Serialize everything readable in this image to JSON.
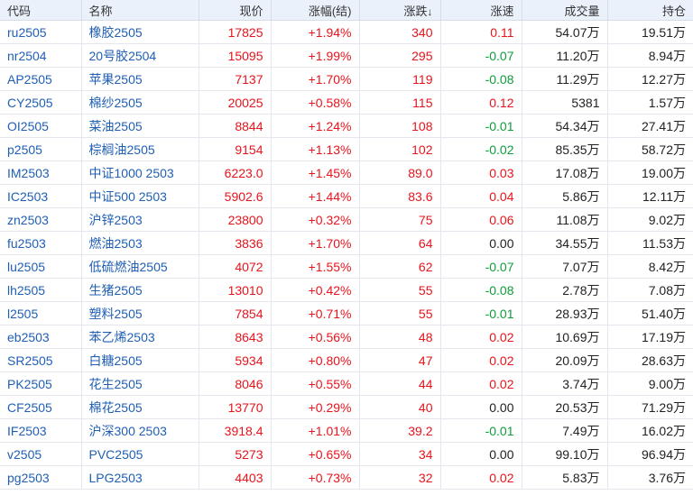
{
  "columns": {
    "code": "代码",
    "name": "名称",
    "price": "现价",
    "change_pct": "涨幅(结)",
    "change": "涨跌",
    "change_sort_icon": "↓",
    "speed": "涨速",
    "volume": "成交量",
    "open_interest": "持仓"
  },
  "rows": [
    {
      "code": "ru2505",
      "name": "橡胶2505",
      "price": "17825",
      "change_pct": "+1.94%",
      "change": "340",
      "speed": "0.11",
      "speed_dir": "up",
      "volume": "54.07万",
      "open_interest": "19.51万"
    },
    {
      "code": "nr2504",
      "name": "20号胶2504",
      "price": "15095",
      "change_pct": "+1.99%",
      "change": "295",
      "speed": "-0.07",
      "speed_dir": "down",
      "volume": "11.20万",
      "open_interest": "8.94万"
    },
    {
      "code": "AP2505",
      "name": "苹果2505",
      "price": "7137",
      "change_pct": "+1.70%",
      "change": "119",
      "speed": "-0.08",
      "speed_dir": "down",
      "volume": "11.29万",
      "open_interest": "12.27万"
    },
    {
      "code": "CY2505",
      "name": "棉纱2505",
      "price": "20025",
      "change_pct": "+0.58%",
      "change": "115",
      "speed": "0.12",
      "speed_dir": "up",
      "volume": "5381",
      "open_interest": "1.57万"
    },
    {
      "code": "OI2505",
      "name": "菜油2505",
      "price": "8844",
      "change_pct": "+1.24%",
      "change": "108",
      "speed": "-0.01",
      "speed_dir": "down",
      "volume": "54.34万",
      "open_interest": "27.41万"
    },
    {
      "code": "p2505",
      "name": "棕榈油2505",
      "price": "9154",
      "change_pct": "+1.13%",
      "change": "102",
      "speed": "-0.02",
      "speed_dir": "down",
      "volume": "85.35万",
      "open_interest": "58.72万"
    },
    {
      "code": "IM2503",
      "name": "中证1000 2503",
      "price": "6223.0",
      "change_pct": "+1.45%",
      "change": "89.0",
      "speed": "0.03",
      "speed_dir": "up",
      "volume": "17.08万",
      "open_interest": "19.00万"
    },
    {
      "code": "IC2503",
      "name": "中证500 2503",
      "price": "5902.6",
      "change_pct": "+1.44%",
      "change": "83.6",
      "speed": "0.04",
      "speed_dir": "up",
      "volume": "5.86万",
      "open_interest": "12.11万"
    },
    {
      "code": "zn2503",
      "name": "沪锌2503",
      "price": "23800",
      "change_pct": "+0.32%",
      "change": "75",
      "speed": "0.06",
      "speed_dir": "up",
      "volume": "11.08万",
      "open_interest": "9.02万"
    },
    {
      "code": "fu2503",
      "name": "燃油2503",
      "price": "3836",
      "change_pct": "+1.70%",
      "change": "64",
      "speed": "0.00",
      "speed_dir": "flat",
      "volume": "34.55万",
      "open_interest": "11.53万"
    },
    {
      "code": "lu2505",
      "name": "低硫燃油2505",
      "price": "4072",
      "change_pct": "+1.55%",
      "change": "62",
      "speed": "-0.07",
      "speed_dir": "down",
      "volume": "7.07万",
      "open_interest": "8.42万"
    },
    {
      "code": "lh2505",
      "name": "生猪2505",
      "price": "13010",
      "change_pct": "+0.42%",
      "change": "55",
      "speed": "-0.08",
      "speed_dir": "down",
      "volume": "2.78万",
      "open_interest": "7.08万"
    },
    {
      "code": "l2505",
      "name": "塑料2505",
      "price": "7854",
      "change_pct": "+0.71%",
      "change": "55",
      "speed": "-0.01",
      "speed_dir": "down",
      "volume": "28.93万",
      "open_interest": "51.40万"
    },
    {
      "code": "eb2503",
      "name": "苯乙烯2503",
      "price": "8643",
      "change_pct": "+0.56%",
      "change": "48",
      "speed": "0.02",
      "speed_dir": "up",
      "volume": "10.69万",
      "open_interest": "17.19万"
    },
    {
      "code": "SR2505",
      "name": "白糖2505",
      "price": "5934",
      "change_pct": "+0.80%",
      "change": "47",
      "speed": "0.02",
      "speed_dir": "up",
      "volume": "20.09万",
      "open_interest": "28.63万"
    },
    {
      "code": "PK2505",
      "name": "花生2505",
      "price": "8046",
      "change_pct": "+0.55%",
      "change": "44",
      "speed": "0.02",
      "speed_dir": "up",
      "volume": "3.74万",
      "open_interest": "9.00万"
    },
    {
      "code": "CF2505",
      "name": "棉花2505",
      "price": "13770",
      "change_pct": "+0.29%",
      "change": "40",
      "speed": "0.00",
      "speed_dir": "flat",
      "volume": "20.53万",
      "open_interest": "71.29万"
    },
    {
      "code": "IF2503",
      "name": "沪深300 2503",
      "price": "3918.4",
      "change_pct": "+1.01%",
      "change": "39.2",
      "speed": "-0.01",
      "speed_dir": "down",
      "volume": "7.49万",
      "open_interest": "16.02万"
    },
    {
      "code": "v2505",
      "name": "PVC2505",
      "price": "5273",
      "change_pct": "+0.65%",
      "change": "34",
      "speed": "0.00",
      "speed_dir": "flat",
      "volume": "99.10万",
      "open_interest": "96.94万"
    },
    {
      "code": "pg2503",
      "name": "LPG2503",
      "price": "4403",
      "change_pct": "+0.73%",
      "change": "32",
      "speed": "0.02",
      "speed_dir": "up",
      "volume": "5.83万",
      "open_interest": "3.76万"
    }
  ],
  "colors": {
    "up": "#e8131b",
    "down": "#0f9d3a",
    "flat": "#222222",
    "link": "#1f5fb4",
    "header_bg": "#eaf1fb"
  }
}
